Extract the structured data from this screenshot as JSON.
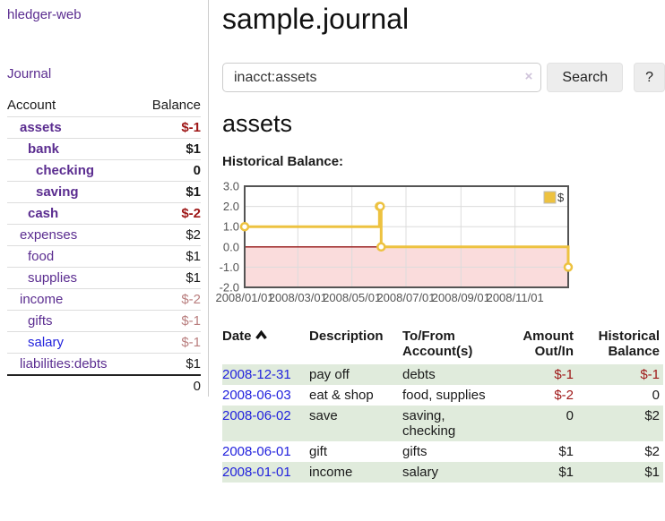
{
  "app": {
    "title": "hledger-web"
  },
  "colors": {
    "purple": "#5b2d90",
    "blue": "#2222dd",
    "dark-red": "#9e1717",
    "soft-red": "#b97e7e",
    "green-row": "#e0ebdc"
  },
  "sidebar": {
    "journal_link": "Journal",
    "table": {
      "headers": {
        "account": "Account",
        "balance": "Balance"
      },
      "rows": [
        {
          "account": "assets",
          "balance": "$-1",
          "depth": 0,
          "bold": true,
          "negative": "strong"
        },
        {
          "account": "bank",
          "balance": "$1",
          "depth": 1,
          "bold": true,
          "negative": null
        },
        {
          "account": "checking",
          "balance": "0",
          "depth": 2,
          "bold": true,
          "negative": null
        },
        {
          "account": "saving",
          "balance": "$1",
          "depth": 2,
          "bold": true,
          "negative": null
        },
        {
          "account": "cash",
          "balance": "$-2",
          "depth": 1,
          "bold": true,
          "negative": "strong"
        },
        {
          "account": "expenses",
          "balance": "$2",
          "depth": 0,
          "bold": false,
          "negative": null
        },
        {
          "account": "food",
          "balance": "$1",
          "depth": 1,
          "bold": false,
          "negative": null
        },
        {
          "account": "supplies",
          "balance": "$1",
          "depth": 1,
          "bold": false,
          "negative": null
        },
        {
          "account": "income",
          "balance": "$-2",
          "depth": 0,
          "bold": false,
          "negative": "soft"
        },
        {
          "account": "gifts",
          "balance": "$-1",
          "depth": 1,
          "bold": false,
          "negative": "soft"
        },
        {
          "account": "salary",
          "balance": "$-1",
          "depth": 1,
          "bold": false,
          "negative": "soft",
          "link": "blue"
        },
        {
          "account": "liabilities:debts",
          "balance": "$1",
          "depth": 0,
          "bold": false,
          "negative": null
        }
      ],
      "total": "0"
    }
  },
  "main": {
    "title": "sample.journal",
    "search": {
      "value": "inacct:assets",
      "clear_icon": "×",
      "button": "Search",
      "help_button": "?"
    },
    "account_heading": "assets"
  },
  "chart_data": {
    "type": "line",
    "style": "step",
    "title": "Historical Balance:",
    "series": [
      {
        "name": "$",
        "color": "#edc240",
        "points": [
          {
            "date": "2008-01-01",
            "value": 1
          },
          {
            "date": "2008-06-01",
            "value": 2
          },
          {
            "date": "2008-06-02",
            "value": 2
          },
          {
            "date": "2008-06-03",
            "value": 0
          },
          {
            "date": "2008-12-31",
            "value": -1
          }
        ]
      }
    ],
    "xlim": [
      "2008-01-01",
      "2008-12-31"
    ],
    "ylim": [
      -2,
      3
    ],
    "x_ticks": [
      {
        "date": "2008-01-01",
        "label": "2008/01/01"
      },
      {
        "date": "2008-03-01",
        "label": "2008/03/01"
      },
      {
        "date": "2008-05-01",
        "label": "2008/05/01"
      },
      {
        "date": "2008-07-01",
        "label": "2008/07/01"
      },
      {
        "date": "2008-09-01",
        "label": "2008/09/01"
      },
      {
        "date": "2008-11-01",
        "label": "2008/11/01"
      }
    ],
    "y_ticks": [
      "3.0",
      "2.0",
      "1.0",
      "0.0",
      "-1.0",
      "-2.0"
    ],
    "grid": true,
    "legend_position": "top-right",
    "negative_region_color": "#fadcdc",
    "zero_line_color": "#951515",
    "grid_color": "#dcdcdc",
    "border_color": "#545454"
  },
  "register_table": {
    "headers": {
      "date": "Date",
      "description": "Description",
      "accounts": "To/From Account(s)",
      "amount": "Amount Out/In",
      "balance": "Historical Balance"
    },
    "rows": [
      {
        "date": "2008-12-31",
        "description": "pay off",
        "accounts": "debts",
        "amount": "$-1",
        "amount_negative": true,
        "balance": "$-1",
        "balance_negative": true
      },
      {
        "date": "2008-06-03",
        "description": "eat & shop",
        "accounts": "food, supplies",
        "amount": "$-2",
        "amount_negative": true,
        "balance": "0",
        "balance_negative": false
      },
      {
        "date": "2008-06-02",
        "description": "save",
        "accounts": "saving, checking",
        "amount": "0",
        "amount_negative": false,
        "balance": "$2",
        "balance_negative": false
      },
      {
        "date": "2008-06-01",
        "description": "gift",
        "accounts": "gifts",
        "amount": "$1",
        "amount_negative": false,
        "balance": "$2",
        "balance_negative": false
      },
      {
        "date": "2008-01-01",
        "description": "income",
        "accounts": "salary",
        "amount": "$1",
        "amount_negative": false,
        "balance": "$1",
        "balance_negative": false
      }
    ]
  }
}
